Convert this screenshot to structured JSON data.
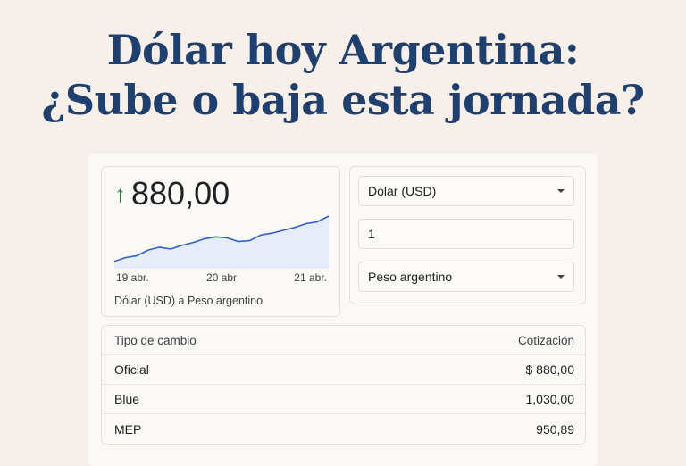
{
  "headline": {
    "line1": "Dólar hoy Argentina:",
    "line2": "¿Sube o baja esta jornada?"
  },
  "widget": {
    "trend_icon": "arrow-up-icon",
    "trend_symbol": "↑",
    "price": "880,00",
    "caption": "Dólar (USD) a Peso argentino",
    "colors": {
      "up": "#2e7d4f",
      "line": "#2f5fc7",
      "fill": "#e6ecfa"
    }
  },
  "chart_data": {
    "type": "area",
    "title": "",
    "x": [
      "19 abr.",
      "20 abr",
      "21 abr."
    ],
    "tick_labels": [
      "19 abr.",
      "20 abr",
      "21 abr."
    ],
    "values": [
      836,
      840,
      842,
      848,
      851,
      849,
      853,
      856,
      860,
      862,
      861,
      857,
      858,
      864,
      866,
      869,
      872,
      876,
      878,
      884
    ],
    "grid": false,
    "legend": false
  },
  "converter": {
    "from_currency": "Dolar (USD)",
    "amount": "1",
    "to_currency": "Peso argentino"
  },
  "table": {
    "headers": [
      "Tipo de cambio",
      "Cotización"
    ],
    "rows": [
      [
        "Oficial",
        "$ 880,00"
      ],
      [
        "Blue",
        "1,030,00"
      ],
      [
        "MEP",
        "950,89"
      ]
    ]
  }
}
